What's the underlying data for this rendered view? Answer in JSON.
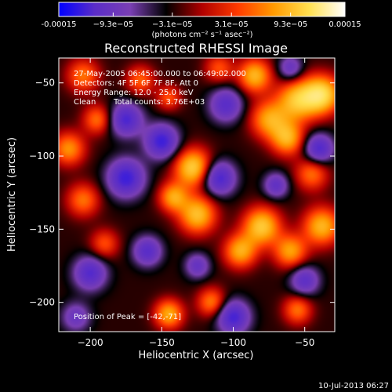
{
  "colorbar": {
    "min": -0.00015,
    "max": 0.00015,
    "tick_labels": [
      "-0.00015",
      "−9.3e−05",
      "−3.1e−05",
      "3.1e−05",
      "9.3e−05",
      "0.00015"
    ],
    "tick_values": [
      -0.00015,
      -9.3e-05,
      -3.1e-05,
      3.1e-05,
      9.3e-05,
      0.00015
    ],
    "unit_label": "(photons cm⁻² s⁻¹ asec⁻²)",
    "colors": [
      "#0000ff",
      "#5a2dc8",
      "#7a3fb4",
      "#000000",
      "#b00000",
      "#ff3a00",
      "#ff9a00",
      "#ffe050",
      "#ffffff"
    ]
  },
  "chart_data": {
    "type": "heatmap",
    "title": "Reconstructed RHESSI Image",
    "xlabel": "Heliocentric X (arcsec)",
    "ylabel": "Heliocentric Y (arcsec)",
    "xlim": [
      -222,
      -29
    ],
    "ylim": [
      -220,
      -33
    ],
    "x_ticks": [
      -200,
      -150,
      -100,
      -50
    ],
    "y_ticks": [
      -200,
      -150,
      -100,
      -50
    ],
    "x_tick_labels": [
      "−200",
      "−150",
      "−100",
      "−50"
    ],
    "y_tick_labels": [
      "−200",
      "−150",
      "−100",
      "−50"
    ],
    "annotations": {
      "time_range": "27-May-2005 06:45:00.000 to 06:49:02.000",
      "detectors": "Detectors: 4F 5F 6F 7F 8F, Att 0",
      "energy_range": "Energy Range: 12.0 - 25.0 keV",
      "clean_label": "Clean",
      "total_counts": "Total counts: 3.76E+03",
      "peak_position": "Position of Peak = [-42,-71]"
    },
    "peak": {
      "x": -42,
      "y": -71
    },
    "sources": [
      {
        "x": -38,
        "y": -58,
        "sigma": 9,
        "amp": 1.0
      },
      {
        "x": -55,
        "y": -62,
        "sigma": 10,
        "amp": 0.85
      },
      {
        "x": -62,
        "y": -88,
        "sigma": 8,
        "amp": 0.75
      },
      {
        "x": -85,
        "y": -45,
        "sigma": 8,
        "amp": 0.8
      },
      {
        "x": -75,
        "y": -75,
        "sigma": 9,
        "amp": 0.7
      },
      {
        "x": -128,
        "y": -108,
        "sigma": 9,
        "amp": 0.95
      },
      {
        "x": -125,
        "y": -140,
        "sigma": 9,
        "amp": 0.85
      },
      {
        "x": -142,
        "y": -128,
        "sigma": 7,
        "amp": 0.7
      },
      {
        "x": -80,
        "y": -148,
        "sigma": 9,
        "amp": 0.9
      },
      {
        "x": -95,
        "y": -165,
        "sigma": 8,
        "amp": 0.75
      },
      {
        "x": -60,
        "y": -165,
        "sigma": 8,
        "amp": 0.7
      },
      {
        "x": -38,
        "y": -148,
        "sigma": 9,
        "amp": 0.8
      },
      {
        "x": -45,
        "y": -112,
        "sigma": 8,
        "amp": 0.55
      },
      {
        "x": -215,
        "y": -95,
        "sigma": 8,
        "amp": 0.65
      },
      {
        "x": -195,
        "y": -75,
        "sigma": 7,
        "amp": 0.55
      },
      {
        "x": -205,
        "y": -45,
        "sigma": 8,
        "amp": 0.55
      },
      {
        "x": -165,
        "y": -48,
        "sigma": 7,
        "amp": 0.5
      },
      {
        "x": -110,
        "y": -40,
        "sigma": 7,
        "amp": 0.45
      },
      {
        "x": -205,
        "y": -130,
        "sigma": 8,
        "amp": 0.55
      },
      {
        "x": -190,
        "y": -160,
        "sigma": 7,
        "amp": 0.45
      },
      {
        "x": -145,
        "y": -208,
        "sigma": 7,
        "amp": 0.75
      },
      {
        "x": -115,
        "y": -200,
        "sigma": 7,
        "amp": 0.6
      },
      {
        "x": -55,
        "y": -205,
        "sigma": 7,
        "amp": 0.55
      },
      {
        "x": -145,
        "y": -60,
        "sigma": 6,
        "amp": 0.45
      },
      {
        "x": -150,
        "y": -90,
        "sigma": 8,
        "amp": -0.9
      },
      {
        "x": -175,
        "y": -75,
        "sigma": 8,
        "amp": -0.8
      },
      {
        "x": -175,
        "y": -115,
        "sigma": 9,
        "amp": -0.9
      },
      {
        "x": -110,
        "y": -115,
        "sigma": 8,
        "amp": -0.85
      },
      {
        "x": -105,
        "y": -65,
        "sigma": 8,
        "amp": -0.7
      },
      {
        "x": -200,
        "y": -180,
        "sigma": 8,
        "amp": -0.75
      },
      {
        "x": -100,
        "y": -210,
        "sigma": 8,
        "amp": -0.85
      },
      {
        "x": -160,
        "y": -165,
        "sigma": 7,
        "amp": -0.7
      },
      {
        "x": -40,
        "y": -95,
        "sigma": 7,
        "amp": -0.8
      },
      {
        "x": -70,
        "y": -120,
        "sigma": 6,
        "amp": -0.6
      },
      {
        "x": -60,
        "y": -40,
        "sigma": 6,
        "amp": -0.55
      },
      {
        "x": -50,
        "y": -185,
        "sigma": 7,
        "amp": -0.65
      },
      {
        "x": -125,
        "y": -175,
        "sigma": 6,
        "amp": -0.55
      },
      {
        "x": -210,
        "y": -210,
        "sigma": 7,
        "amp": -0.5
      }
    ]
  },
  "footer": {
    "timestamp": "10-Jul-2013 06:27"
  }
}
